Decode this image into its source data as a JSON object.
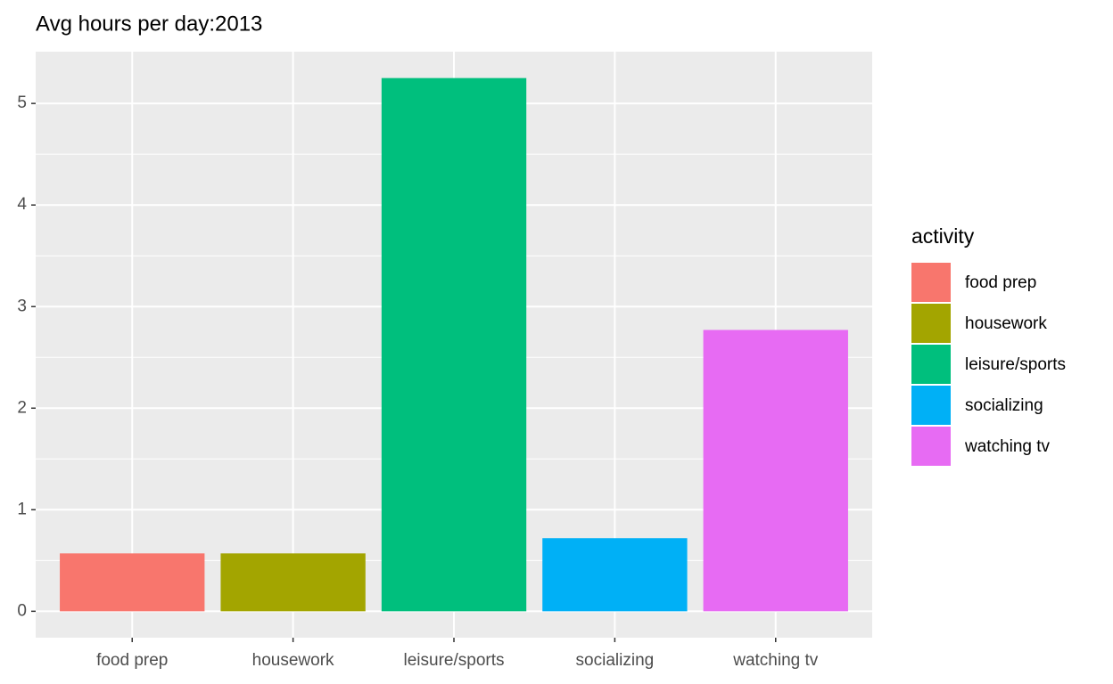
{
  "chart_data": {
    "type": "bar",
    "title": "Avg hours per day:2013",
    "categories": [
      "food prep",
      "housework",
      "leisure/sports",
      "socializing",
      "watching tv"
    ],
    "values": [
      0.57,
      0.57,
      5.25,
      0.72,
      2.77
    ],
    "colors": [
      "#f8766d",
      "#a3a500",
      "#00bf7d",
      "#00b0f6",
      "#e76bf3"
    ],
    "ylim": [
      -0.26,
      5.51
    ],
    "yticks": [
      0,
      1,
      2,
      3,
      4,
      5
    ],
    "grid": true,
    "legend_title": "activity",
    "legend": "right"
  }
}
